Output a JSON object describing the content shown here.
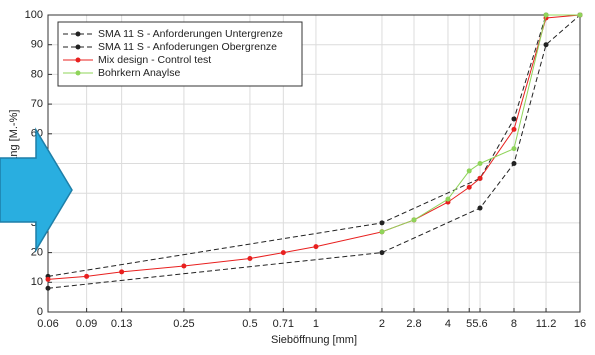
{
  "chart_data": {
    "type": "line",
    "x_label": "Sieböffnung [mm]",
    "y_label": "Siebdurchgang [M.-%]",
    "xscale": "log",
    "grid": true,
    "legend": "upper left",
    "xlim": [
      0.06,
      16
    ],
    "ylim": [
      0,
      100
    ],
    "xticks": [
      0.06,
      0.09,
      0.13,
      0.25,
      0.5,
      0.71,
      1,
      2,
      2.8,
      4,
      5,
      5.6,
      8,
      11.2,
      16
    ],
    "yticks": [
      0,
      10,
      20,
      30,
      40,
      50,
      60,
      70,
      80,
      90,
      100
    ],
    "series": [
      {
        "name": "SMA 11 S - Anforderungen Untergrenze",
        "color": "#222222",
        "dashed": true,
        "x": [
          0.06,
          2,
          5.6,
          8,
          11.2,
          16
        ],
        "values": [
          8,
          20,
          35,
          50,
          90,
          100
        ]
      },
      {
        "name": "SMA 11 S - Anfoderungen Obergrenze",
        "color": "#222222",
        "dashed": true,
        "x": [
          0.06,
          2,
          5.6,
          8,
          11.2,
          16
        ],
        "values": [
          12,
          30,
          45,
          65,
          100,
          100
        ]
      },
      {
        "name": "Mix design - Control test",
        "color": "#e8201f",
        "dashed": false,
        "x": [
          0.06,
          0.09,
          0.13,
          0.25,
          0.5,
          0.71,
          1,
          2,
          2.8,
          4,
          5,
          5.6,
          8,
          11.2,
          16
        ],
        "values": [
          11,
          12,
          13.5,
          15.5,
          18,
          20,
          22,
          27,
          31,
          37,
          42,
          45,
          61.5,
          99,
          100
        ]
      },
      {
        "name": "Bohrkern Anaylse",
        "color": "#8fd45a",
        "dashed": false,
        "x": [
          2,
          2.8,
          4,
          5,
          5.6,
          8,
          11.2,
          16
        ],
        "values": [
          27,
          31,
          38,
          47.5,
          50,
          55,
          100,
          100
        ]
      }
    ]
  }
}
